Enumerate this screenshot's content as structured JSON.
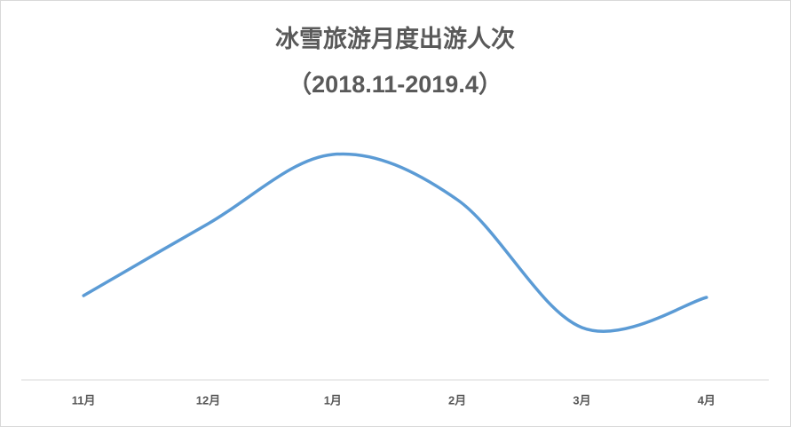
{
  "chart_data": {
    "type": "line",
    "title": "冰雪旅游月度出游人次",
    "subtitle": "（2018.11-2019.4）",
    "categories": [
      "11月",
      "12月",
      "1月",
      "2月",
      "3月",
      "4月"
    ],
    "series": [
      {
        "name": "出游人次",
        "color": "#5b9bd5",
        "values": [
          95,
          176,
          254,
          203,
          59,
          93
        ]
      }
    ],
    "ylim": [
      0,
      300
    ],
    "smooth": true
  }
}
